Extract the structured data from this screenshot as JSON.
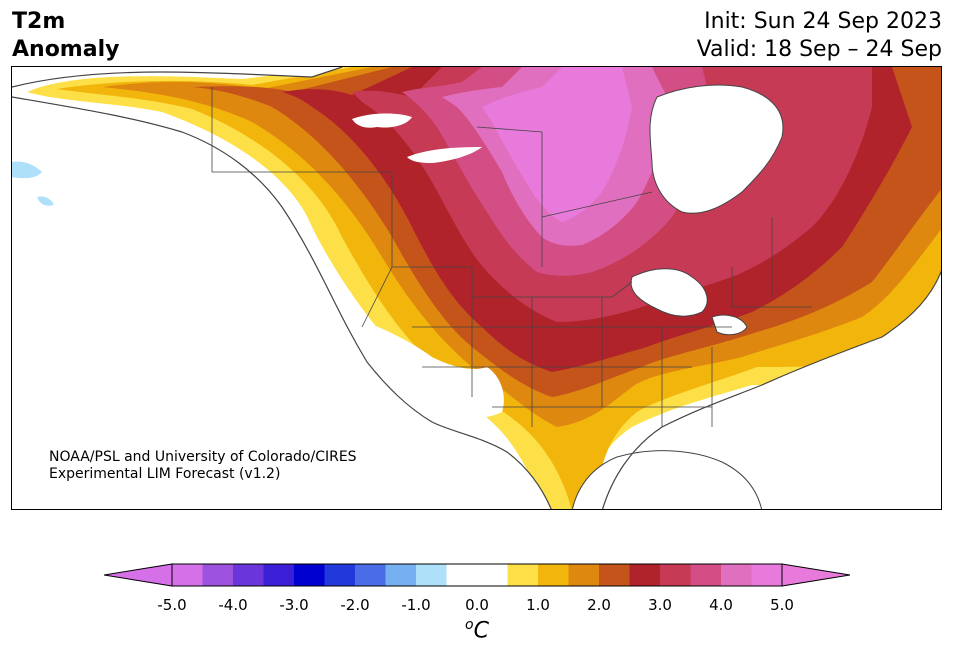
{
  "title": {
    "line1": "T2m",
    "line2": "Anomaly",
    "init": "Init: Sun 24 Sep 2023",
    "valid": "Valid: 18 Sep – 24 Sep"
  },
  "credit": {
    "line1": "NOAA/PSL and University of Colorado/CIRES",
    "line2": "Experimental LIM Forecast (v1.2)"
  },
  "colorbar": {
    "unit_sup": "o",
    "unit_main": "C",
    "tick_labels": [
      "-5.0",
      "-4.0",
      "-3.0",
      "-2.0",
      "-1.0",
      "0.0",
      "1.0",
      "2.0",
      "3.0",
      "4.0",
      "5.0"
    ],
    "colors": [
      "#d570e8",
      "#9c52dd",
      "#6a36dc",
      "#3a1fd6",
      "#0000d0",
      "#2238db",
      "#4a6ce6",
      "#77b0f0",
      "#aee0fa",
      "#ffffff",
      "#ffffff",
      "#fde047",
      "#f2b50c",
      "#de8810",
      "#c4541a",
      "#b0232a",
      "#c63a55",
      "#d24e85",
      "#e06fbf",
      "#e87adc"
    ],
    "extend_low_color": "#d570e8",
    "extend_high_color": "#e87adc"
  },
  "map": {
    "region": "North America",
    "variable": "2m temperature anomaly"
  }
}
